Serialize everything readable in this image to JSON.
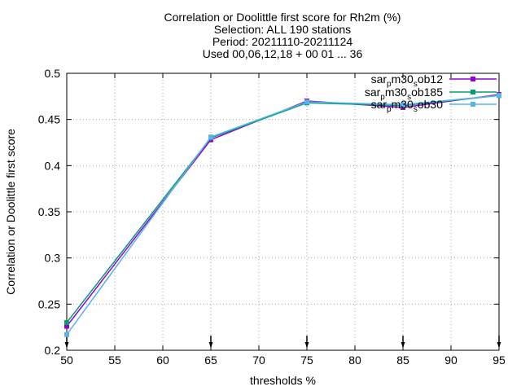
{
  "chart_data": {
    "type": "line",
    "title_lines": [
      "Correlation or Doolittle first score  for Rh2m (%)",
      "Selection: ALL    190 stations",
      "Period: 20211110-20211124",
      "Used 00,06,12,18 + 00 01 ... 36"
    ],
    "xlabel": "thresholds %",
    "ylabel": "Correlation or Doolittle first score",
    "xlim": [
      50,
      95
    ],
    "ylim": [
      0.2,
      0.5
    ],
    "xticks": [
      50,
      55,
      60,
      65,
      70,
      75,
      80,
      85,
      90,
      95
    ],
    "yticks": [
      0.2,
      0.25,
      0.3,
      0.35,
      0.4,
      0.45,
      0.5
    ],
    "ytick_labels": [
      "0.2",
      "0.25",
      "0.3",
      "0.35",
      "0.4",
      "0.45",
      "0.5"
    ],
    "grid": true,
    "legend_position": "top-right",
    "x": [
      50,
      65,
      75,
      85,
      95
    ],
    "series": [
      {
        "name": "sar_p m30_s ob12",
        "name_parts": [
          "sar",
          "p",
          "m30",
          "s",
          "ob12"
        ],
        "color": "#9400d3",
        "values": [
          0.226,
          0.428,
          0.47,
          0.463,
          0.477
        ]
      },
      {
        "name": "sar_p m30_s ob185",
        "name_parts": [
          "sar",
          "p",
          "m30",
          "s",
          "ob185"
        ],
        "color": "#009e73",
        "values": [
          0.23,
          0.43,
          0.468,
          0.465,
          0.476
        ]
      },
      {
        "name": "sar_p m30_s ob30",
        "name_parts": [
          "sar",
          "p",
          "m30",
          "s",
          "ob30"
        ],
        "color": "#56b4e9",
        "values": [
          0.217,
          0.431,
          0.469,
          0.466,
          0.476
        ]
      }
    ],
    "baseline_markers_x": [
      50,
      65,
      75,
      85,
      95
    ]
  }
}
